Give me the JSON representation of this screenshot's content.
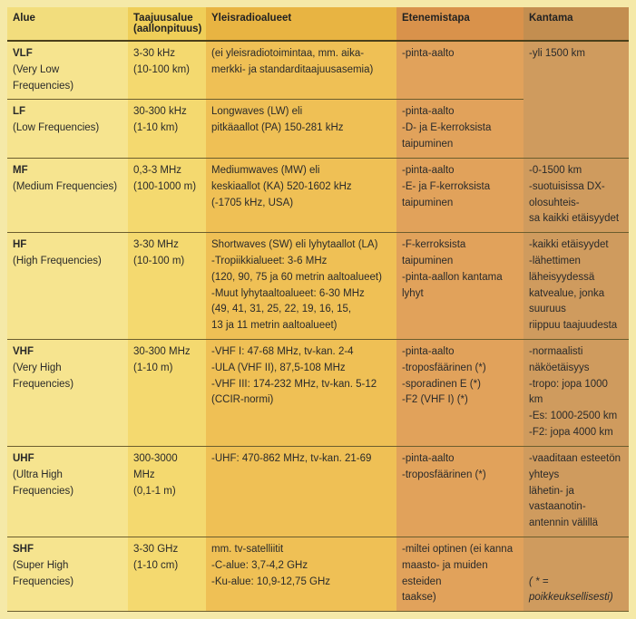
{
  "headers": {
    "c1": "Alue",
    "c2a": "Taajuusalue",
    "c2b": "(aallonpituus)",
    "c3": "Yleisradioalueet",
    "c4": "Etenemistapa",
    "c5": "Kantama"
  },
  "rows": [
    {
      "c1": [
        "VLF",
        "(Very Low Frequencies)"
      ],
      "c2": [
        "3-30 kHz",
        "(10-100 km)"
      ],
      "c3": [
        "(ei yleisradiotoimintaa, mm. aika-",
        "merkki- ja standarditaajuusasemia)"
      ],
      "c4": [
        "-pinta-aalto"
      ],
      "c5": [
        "-yli 1500 km"
      ],
      "c5span": 2
    },
    {
      "c1": [
        "LF",
        "(Low Frequencies)"
      ],
      "c2": [
        "30-300 kHz",
        "(1-10 km)"
      ],
      "c3": [
        "Longwaves (LW) eli",
        "pitkäaallot (PA) 150-281 kHz"
      ],
      "c4": [
        "-pinta-aalto",
        "-D- ja E-kerroksista taipuminen"
      ],
      "c5": null
    },
    {
      "c1": [
        "MF",
        "(Medium Frequencies)"
      ],
      "c2": [
        "0,3-3 MHz",
        "(100-1000 m)"
      ],
      "c3": [
        "Mediumwaves (MW) eli",
        "keskiaallot (KA) 520-1602 kHz",
        " (-1705 kHz, USA)"
      ],
      "c4": [
        "-pinta-aalto",
        "-E- ja F-kerroksista taipuminen"
      ],
      "c5": [
        "-0-1500 km",
        "-suotuisissa DX-olosuhteis-",
        " sa kaikki etäisyydet"
      ]
    },
    {
      "c1": [
        "HF",
        "(High Frequencies)"
      ],
      "c2": [
        "3-30 MHz",
        "(10-100 m)"
      ],
      "c3": [
        "Shortwaves (SW) eli lyhytaallot (LA)",
        "-Tropiikkialueet: 3-6 MHz",
        " (120, 90, 75 ja 60 metrin aaltoalueet)",
        "-Muut lyhytaaltoalueet: 6-30 MHz",
        " (49, 41, 31, 25, 22, 19, 16, 15,",
        " 13 ja 11 metrin aaltoalueet)"
      ],
      "c4": [
        "-F-kerroksista taipuminen",
        "-pinta-aallon kantama lyhyt"
      ],
      "c5": [
        "-kaikki etäisyydet",
        "-lähettimen läheisyydessä",
        " katvealue, jonka suuruus",
        " riippuu taajuudesta"
      ]
    },
    {
      "c1": [
        "VHF",
        "(Very High Frequencies)"
      ],
      "c2": [
        "30-300 MHz",
        "(1-10 m)"
      ],
      "c3": [
        "-VHF I: 47-68 MHz, tv-kan. 2-4",
        "-ULA (VHF II), 87,5-108 MHz",
        "-VHF III: 174-232 MHz, tv-kan. 5-12",
        " (CCIR-normi)"
      ],
      "c4": [
        "-pinta-aalto",
        "-troposfäärinen (*)",
        "-sporadinen E (*)",
        "-F2 (VHF I) (*)"
      ],
      "c5": [
        "-normaalisti näköetäisyys",
        "-tropo: jopa 1000 km",
        "-Es: 1000-2500 km",
        "-F2: jopa 4000 km"
      ]
    },
    {
      "c1": [
        "UHF",
        "(Ultra High Frequencies)"
      ],
      "c2": [
        "300-3000 MHz",
        "(0,1-1 m)"
      ],
      "c3": [
        "-UHF: 470-862 MHz, tv-kan. 21-69"
      ],
      "c4": [
        "-pinta-aalto",
        "-troposfäärinen (*)"
      ],
      "c5": [
        "-vaaditaan esteetön yhteys",
        " lähetin- ja vastaanotin-",
        " antennin välillä"
      ]
    },
    {
      "c1": [
        "SHF",
        "(Super High Frequencies)"
      ],
      "c2": [
        "3-30 GHz",
        "(1-10 cm)"
      ],
      "c3": [
        "mm. tv-satelliitit",
        "-C-alue: 3,7-4,2 GHz",
        "-Ku-alue: 10,9-12,75 GHz"
      ],
      "c4": [
        "-miltei optinen (ei kanna",
        " maasto- ja muiden esteiden",
        " taakse)"
      ],
      "c5_footnote": "( * = poikkeuksellisesti)"
    }
  ]
}
